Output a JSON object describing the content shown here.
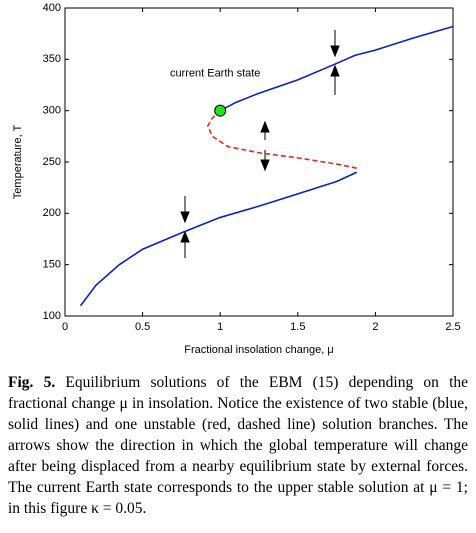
{
  "chart_data": {
    "type": "line",
    "xlabel": "Fractional insolation change, μ",
    "ylabel": "Temperature, T",
    "xlim": [
      0,
      2.5
    ],
    "xticks": [
      0,
      0.5,
      1,
      1.5,
      2,
      2.5
    ],
    "ylim": [
      100,
      400
    ],
    "yticks": [
      100,
      150,
      200,
      250,
      300,
      350,
      400
    ],
    "series": [
      {
        "color": "#0a1fc8",
        "dash": false,
        "x": [
          1.0,
          1.1,
          1.25,
          1.5,
          1.75,
          1.87,
          2.0,
          2.25,
          2.5
        ],
        "values": [
          300,
          308,
          317,
          330,
          346,
          354,
          359,
          371,
          382
        ]
      },
      {
        "color": "#e0281e",
        "dash": true,
        "x": [
          1.88,
          1.75,
          1.5,
          1.25,
          1.05,
          0.95,
          0.92,
          0.95,
          1.0
        ],
        "values": [
          244,
          248,
          254,
          259,
          265,
          275,
          285,
          293,
          300
        ]
      },
      {
        "color": "#0a1fc8",
        "dash": false,
        "x": [
          0.1,
          0.2,
          0.35,
          0.5,
          0.75,
          1.0,
          1.25,
          1.5,
          1.75,
          1.88
        ],
        "values": [
          110,
          130,
          150,
          165,
          181,
          196,
          207,
          219,
          231,
          240
        ]
      }
    ],
    "points": [
      {
        "x": 1,
        "y": 300,
        "color": "#1ee61e",
        "label": "current Earth state"
      }
    ]
  },
  "caption": {
    "label": "Fig. 5.",
    "text": "Equilibrium solutions of the EBM (15) depending on the fractional change μ in insolation. Notice the existence of two stable (blue, solid lines) and one unstable (red, dashed line) solution branches. The arrows show the direction in which the global temperature will change after being displaced from a nearby equilibrium state by external forces. The current Earth state corresponds to the upper stable solution at μ = 1; in this figure κ = 0.05."
  }
}
